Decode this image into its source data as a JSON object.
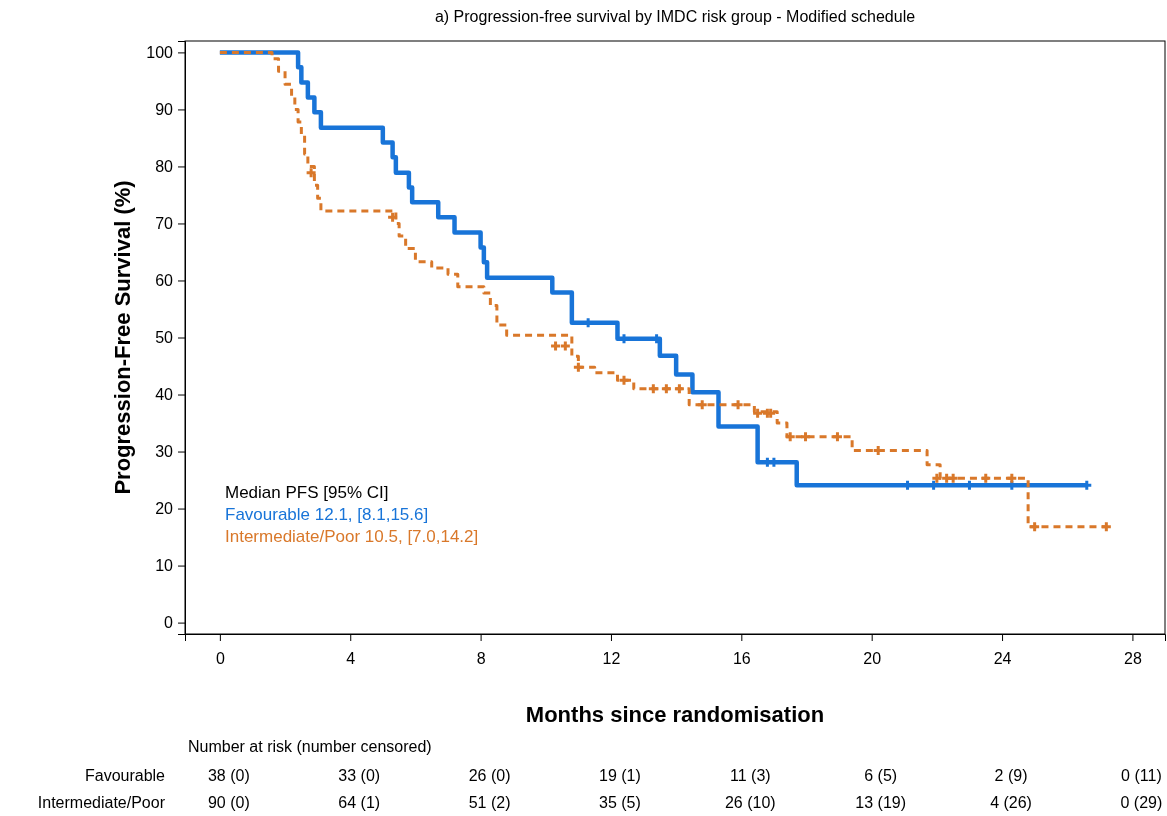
{
  "chart_data": {
    "type": "step",
    "title": "a) Progression-free survival by IMDC risk group - Modified schedule",
    "xlabel": "Months since randomisation",
    "ylabel": "Progression-Free Survival (%)",
    "legend_title": "Median PFS [95% CI]",
    "legend": "bottom left",
    "grid": false,
    "xlim": [
      -1.07,
      29.0
    ],
    "ylim": [
      -2.0,
      102.0
    ],
    "xticks": [
      0,
      4,
      8,
      12,
      16,
      20,
      24,
      28
    ],
    "yticks": [
      0,
      10,
      20,
      30,
      40,
      50,
      60,
      70,
      80,
      90,
      100
    ],
    "series": [
      {
        "name": "Favourable 12.1, [8.1,15.6]",
        "color": "#1874d8",
        "line_style": "solid",
        "marker": "none",
        "x": [
          0,
          2.4,
          2.5,
          2.7,
          2.9,
          3.1,
          5.0,
          5.3,
          5.4,
          5.8,
          5.9,
          6.7,
          7.2,
          8.0,
          8.1,
          8.2,
          10.2,
          10.8,
          12.2,
          13.5,
          14.0,
          14.5,
          15.3,
          16.5,
          17.7,
          26.6
        ],
        "values": [
          100,
          97.4,
          94.7,
          92.1,
          89.5,
          86.8,
          84.2,
          81.6,
          78.9,
          76.3,
          73.7,
          71.1,
          68.4,
          65.8,
          63.2,
          60.5,
          57.9,
          52.6,
          49.8,
          46.8,
          43.5,
          40.4,
          34.4,
          28.1,
          24.1,
          24.1
        ]
      },
      {
        "name": "Intermediate/Poor 10.5, [7.0,14.2]",
        "color": "#d9782a",
        "line_style": "dashed",
        "marker": "none",
        "x": [
          0,
          1.6,
          1.8,
          2.0,
          2.2,
          2.3,
          2.4,
          2.5,
          2.6,
          2.7,
          2.9,
          3.0,
          3.1,
          5.4,
          5.5,
          5.7,
          6.0,
          6.5,
          7.0,
          7.3,
          8.1,
          8.3,
          8.5,
          8.8,
          10.8,
          11.0,
          11.5,
          12.2,
          12.7,
          14.4,
          16.4,
          17.1,
          17.4,
          19.4,
          21.7,
          22.1,
          24.8,
          27.2
        ],
        "values": [
          100,
          98.9,
          96.7,
          94.4,
          92.2,
          90.0,
          87.8,
          85.6,
          82.2,
          80.0,
          76.7,
          74.4,
          72.2,
          70.0,
          67.8,
          65.6,
          63.3,
          62.2,
          61.1,
          58.9,
          57.8,
          55.6,
          52.2,
          50.4,
          46.7,
          44.8,
          43.8,
          42.5,
          41.0,
          38.2,
          37.0,
          35.0,
          32.6,
          30.2,
          27.7,
          25.3,
          16.8,
          16.8
        ]
      },
      {
        "type": "scatter",
        "color": "#1874d8",
        "marker": "cross",
        "x": [
          11.3,
          12.4,
          13.4,
          16.8,
          17.0,
          21.1,
          21.9,
          23.0,
          24.3,
          26.6
        ],
        "values": [
          52.6,
          49.8,
          49.8,
          28.1,
          28.1,
          24.1,
          24.1,
          24.1,
          24.1,
          24.1
        ]
      },
      {
        "type": "scatter",
        "color": "#d9782a",
        "marker": "cross",
        "x": [
          2.8,
          5.3,
          10.3,
          10.6,
          11.0,
          12.4,
          13.3,
          13.7,
          14.1,
          14.8,
          15.9,
          16.5,
          16.8,
          16.9,
          17.5,
          17.97,
          18.95,
          20.2,
          22.0,
          22.3,
          22.5,
          23.5,
          24.3,
          25.0,
          27.2
        ],
        "values": [
          78.9,
          71.1,
          48.5,
          48.5,
          44.8,
          42.5,
          41.0,
          41.0,
          41.0,
          38.2,
          38.2,
          36.7,
          36.7,
          36.7,
          32.6,
          32.6,
          32.6,
          30.2,
          25.3,
          25.3,
          25.3,
          25.3,
          25.3,
          16.8,
          16.8
        ]
      }
    ],
    "annotations": [
      "Number at risk (number censored)",
      "Favourable",
      "38 (0)",
      "33 (0)",
      "26 (0)",
      "19 (1)",
      "11 (3)",
      "6 (5)",
      "2 (9)",
      "0 (11)",
      "Intermediate/Poor",
      "90 (0)",
      "64 (1)",
      "51 (2)",
      "35 (5)",
      "26 (10)",
      "13 (19)",
      "4 (26)",
      "0 (29)"
    ]
  }
}
